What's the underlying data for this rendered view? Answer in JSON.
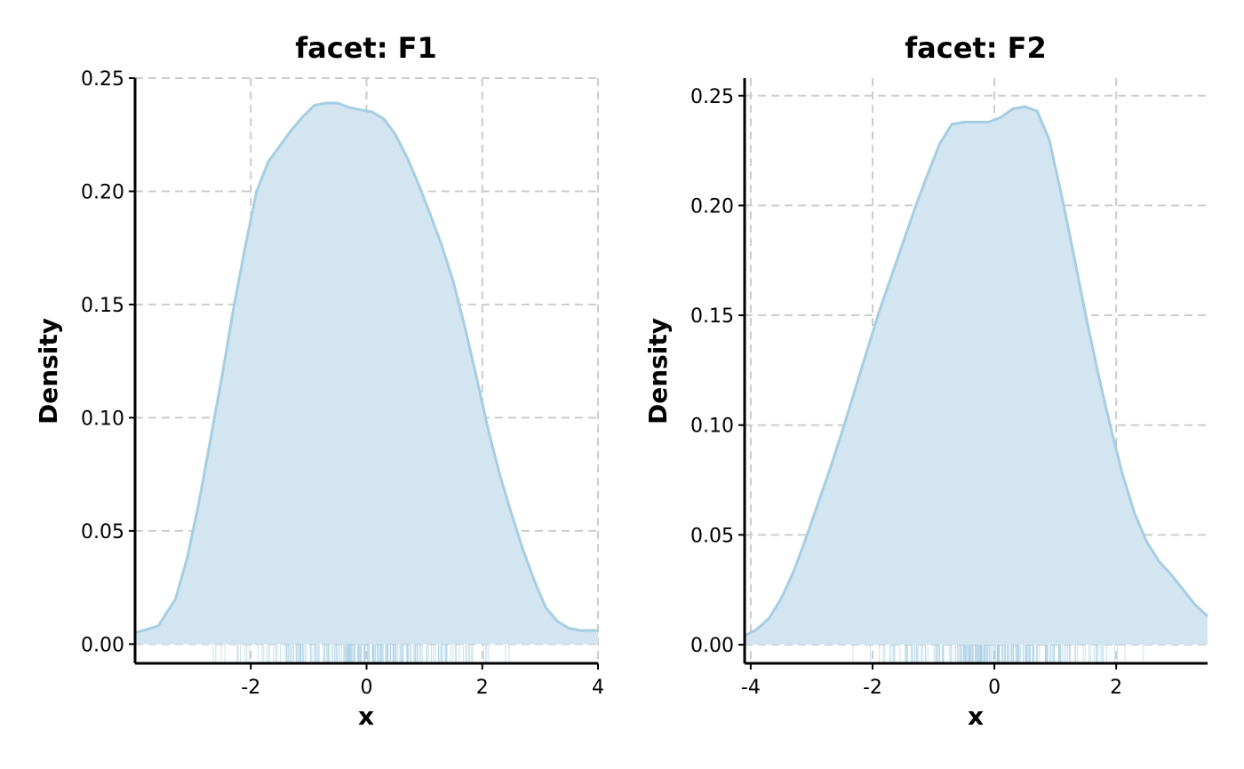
{
  "chart_data": [
    {
      "type": "area",
      "title": "facet: F1",
      "xlabel": "x",
      "ylabel": "Density",
      "xlim": [
        -4.0,
        4.0
      ],
      "ylim": [
        -0.0085,
        0.25
      ],
      "xticks": [
        -2,
        0,
        2,
        4
      ],
      "xtick_labels": [
        "-2",
        "0",
        "2",
        "4"
      ],
      "yticks": [
        0.0,
        0.05,
        0.1,
        0.15,
        0.2,
        0.25
      ],
      "ytick_labels": [
        "0.00",
        "0.05",
        "0.10",
        "0.15",
        "0.20",
        "0.25"
      ],
      "grid": true,
      "fill_color": "#d2e5f0",
      "line_color": "#a6cee3",
      "rug": true,
      "x": [
        -4.0,
        -3.6,
        -3.3,
        -3.1,
        -2.9,
        -2.7,
        -2.5,
        -2.3,
        -2.1,
        -1.9,
        -1.7,
        -1.5,
        -1.3,
        -1.1,
        -0.9,
        -0.7,
        -0.5,
        -0.3,
        -0.1,
        0.1,
        0.3,
        0.5,
        0.7,
        0.9,
        1.1,
        1.3,
        1.5,
        1.7,
        1.9,
        2.1,
        2.3,
        2.5,
        2.7,
        2.9,
        3.1,
        3.3,
        3.5,
        3.7,
        4.0
      ],
      "y": [
        0.005,
        0.008,
        0.02,
        0.038,
        0.062,
        0.09,
        0.118,
        0.148,
        0.175,
        0.2,
        0.213,
        0.22,
        0.227,
        0.233,
        0.238,
        0.239,
        0.239,
        0.237,
        0.236,
        0.235,
        0.232,
        0.225,
        0.215,
        0.203,
        0.19,
        0.176,
        0.16,
        0.14,
        0.118,
        0.095,
        0.075,
        0.058,
        0.042,
        0.028,
        0.016,
        0.01,
        0.007,
        0.006,
        0.006
      ]
    },
    {
      "type": "area",
      "title": "facet: F2",
      "xlabel": "x",
      "ylabel": "Density",
      "xlim": [
        -4.1,
        3.5
      ],
      "ylim": [
        -0.0085,
        0.258
      ],
      "xticks": [
        -4,
        -2,
        0,
        2
      ],
      "xtick_labels": [
        "-4",
        "-2",
        "0",
        "2"
      ],
      "yticks": [
        0.0,
        0.05,
        0.1,
        0.15,
        0.2,
        0.25
      ],
      "ytick_labels": [
        "0.00",
        "0.05",
        "0.10",
        "0.15",
        "0.20",
        "0.25"
      ],
      "grid": true,
      "fill_color": "#d2e5f0",
      "line_color": "#a6cee3",
      "rug": true,
      "x": [
        -4.1,
        -3.9,
        -3.7,
        -3.5,
        -3.3,
        -3.1,
        -2.9,
        -2.7,
        -2.5,
        -2.3,
        -2.1,
        -1.9,
        -1.7,
        -1.5,
        -1.3,
        -1.1,
        -0.9,
        -0.7,
        -0.5,
        -0.3,
        -0.1,
        0.1,
        0.3,
        0.5,
        0.7,
        0.9,
        1.1,
        1.3,
        1.5,
        1.7,
        1.9,
        2.1,
        2.3,
        2.5,
        2.7,
        2.9,
        3.1,
        3.3,
        3.5
      ],
      "y": [
        0.004,
        0.007,
        0.012,
        0.021,
        0.033,
        0.048,
        0.064,
        0.08,
        0.097,
        0.115,
        0.133,
        0.151,
        0.167,
        0.183,
        0.199,
        0.214,
        0.228,
        0.237,
        0.238,
        0.238,
        0.238,
        0.24,
        0.244,
        0.245,
        0.243,
        0.23,
        0.205,
        0.178,
        0.15,
        0.124,
        0.1,
        0.078,
        0.06,
        0.047,
        0.038,
        0.032,
        0.025,
        0.018,
        0.013
      ]
    }
  ]
}
